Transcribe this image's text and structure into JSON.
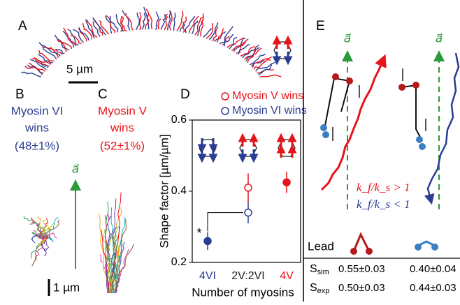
{
  "panels": {
    "A": {
      "label": "A",
      "scale_bar": "5 µm"
    },
    "B": {
      "label": "B",
      "title_lines": [
        "Myosin VI",
        "wins"
      ],
      "share": "(48±1%)",
      "scale_bar": "1 µm",
      "arrow_label": "a⃗"
    },
    "C": {
      "label": "C",
      "title_lines": [
        "Myosin V",
        "wins"
      ],
      "share": "(52±1%)"
    },
    "D": {
      "label": "D"
    },
    "E": {
      "label": "E",
      "arrow_label": "a⃗",
      "ratio_fast": "k_f/k_s > 1",
      "ratio_slow": "k_f/k_s < 1",
      "lead": "Lead",
      "table": {
        "rows": [
          {
            "symbol": "S",
            "sub": "sim",
            "cells": [
              "0.55±0.03",
              "0.40±0.04"
            ]
          },
          {
            "symbol": "S",
            "sub": "exp",
            "cells": [
              "0.50±0.03",
              "0.44±0.03"
            ]
          }
        ]
      }
    }
  },
  "chart_data": {
    "type": "scatter",
    "y_label": "Shape factor [µm/µm]",
    "x_label": "Number of myosins",
    "categories": [
      "4VI",
      "2V:2VI",
      "4V"
    ],
    "series": [
      {
        "name": "Myosin V wins",
        "color": "#e8141c",
        "values": [
          null,
          0.41,
          0.425
        ],
        "errors": [
          null,
          0.04,
          0.03
        ],
        "filled": [
          null,
          false,
          true
        ]
      },
      {
        "name": "Myosin VI wins",
        "color": "#2b3d93",
        "values": [
          0.26,
          0.34,
          null
        ],
        "errors": [
          0.025,
          0.03,
          null
        ],
        "filled": [
          true,
          false,
          null
        ]
      }
    ],
    "ylim": [
      0.2,
      0.6
    ],
    "yticks": [
      0.2,
      0.4,
      0.6
    ],
    "annotation": "*"
  }
}
